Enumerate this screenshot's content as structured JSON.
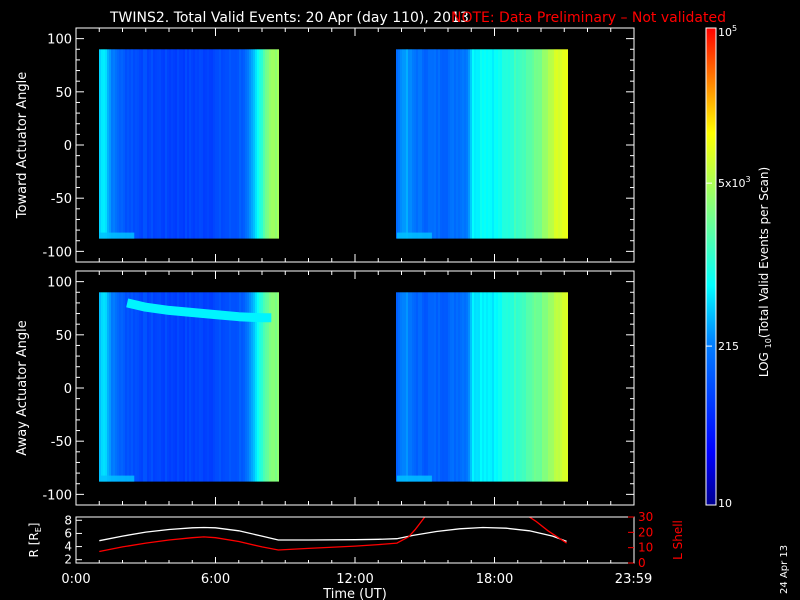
{
  "header": {
    "title": "TWINS2. Total Valid Events: 20 Apr (day 110), 2013",
    "note": "NOTE: Data Preliminary – Not validated"
  },
  "colors": {
    "background": "#000000",
    "foreground": "#ffffff",
    "note": "#ff0000",
    "r_line": "#ffffff",
    "lshell_line": "#ff0000"
  },
  "footer": {
    "date_stamp": "24 Apr 13"
  },
  "chart_data": [
    {
      "id": "toward",
      "type": "heatmap",
      "ylabel": "Toward Actuator Angle",
      "xlim": [
        0,
        24
      ],
      "ylim": [
        -110,
        110
      ],
      "yticks": [
        "100",
        "50",
        "0",
        "-50",
        "-100"
      ],
      "blocks": [
        {
          "time_range": [
            1.0,
            8.7
          ],
          "angle_range": [
            -88,
            90
          ],
          "x_profile": [
            [
              1.0,
              0.42
            ],
            [
              1.2,
              0.47
            ],
            [
              1.35,
              0.38
            ],
            [
              1.6,
              0.32
            ],
            [
              2.0,
              0.27
            ],
            [
              3.0,
              0.24
            ],
            [
              4.0,
              0.23
            ],
            [
              5.0,
              0.23
            ],
            [
              6.0,
              0.24
            ],
            [
              6.8,
              0.26
            ],
            [
              7.3,
              0.3
            ],
            [
              7.6,
              0.38
            ],
            [
              7.8,
              0.47
            ],
            [
              8.0,
              0.55
            ],
            [
              8.1,
              0.6
            ],
            [
              8.3,
              0.65
            ],
            [
              8.7,
              0.65
            ]
          ]
        },
        {
          "time_range": [
            13.8,
            21.1
          ],
          "angle_range": [
            -88,
            90
          ],
          "x_profile": [
            [
              13.8,
              0.32
            ],
            [
              14.1,
              0.38
            ],
            [
              14.4,
              0.33
            ],
            [
              15.0,
              0.3
            ],
            [
              16.0,
              0.3
            ],
            [
              16.8,
              0.34
            ],
            [
              17.0,
              0.45
            ],
            [
              17.5,
              0.48
            ],
            [
              18.0,
              0.46
            ],
            [
              18.5,
              0.5
            ],
            [
              19.0,
              0.55
            ],
            [
              19.6,
              0.58
            ],
            [
              20.2,
              0.65
            ],
            [
              20.6,
              0.72
            ],
            [
              20.9,
              0.74
            ],
            [
              21.1,
              0.74
            ]
          ]
        }
      ]
    },
    {
      "id": "away",
      "type": "heatmap",
      "ylabel": "Away Actuator Angle",
      "xlim": [
        0,
        24
      ],
      "ylim": [
        -110,
        110
      ],
      "yticks": [
        "100",
        "50",
        "0",
        "-50",
        "-100"
      ],
      "blocks": [
        {
          "time_range": [
            1.0,
            8.7
          ],
          "angle_range": [
            -88,
            90
          ],
          "x_profile": [
            [
              1.0,
              0.4
            ],
            [
              1.2,
              0.46
            ],
            [
              1.35,
              0.38
            ],
            [
              1.6,
              0.32
            ],
            [
              2.0,
              0.27
            ],
            [
              3.0,
              0.24
            ],
            [
              4.0,
              0.23
            ],
            [
              5.0,
              0.23
            ],
            [
              6.0,
              0.24
            ],
            [
              6.8,
              0.26
            ],
            [
              7.3,
              0.3
            ],
            [
              7.6,
              0.38
            ],
            [
              7.8,
              0.47
            ],
            [
              8.0,
              0.55
            ],
            [
              8.3,
              0.62
            ],
            [
              8.7,
              0.62
            ]
          ]
        },
        {
          "time_range": [
            13.8,
            21.1
          ],
          "angle_range": [
            -88,
            90
          ],
          "x_profile": [
            [
              13.8,
              0.3
            ],
            [
              14.1,
              0.36
            ],
            [
              14.4,
              0.3
            ],
            [
              15.0,
              0.28
            ],
            [
              16.0,
              0.29
            ],
            [
              16.8,
              0.33
            ],
            [
              17.0,
              0.44
            ],
            [
              17.5,
              0.46
            ],
            [
              18.0,
              0.45
            ],
            [
              18.5,
              0.5
            ],
            [
              19.0,
              0.54
            ],
            [
              19.6,
              0.58
            ],
            [
              20.2,
              0.62
            ],
            [
              20.6,
              0.68
            ],
            [
              20.9,
              0.72
            ],
            [
              21.1,
              0.72
            ]
          ]
        }
      ],
      "features": [
        {
          "label": "high-angle band",
          "points": [
            [
              2.2,
              80
            ],
            [
              3.0,
              76
            ],
            [
              4.0,
              73
            ],
            [
              5.0,
              71
            ],
            [
              6.0,
              69
            ],
            [
              7.0,
              67
            ],
            [
              8.0,
              66
            ],
            [
              8.4,
              66
            ]
          ],
          "level": 0.45
        }
      ]
    },
    {
      "id": "orbit",
      "type": "line",
      "xlabel": "Time (UT)",
      "xticks": [
        "0:00",
        "6:00",
        "12:00",
        "18:00",
        "23:59"
      ],
      "xtick_hours": [
        0,
        6,
        12,
        18,
        23.98
      ],
      "xlim": [
        0,
        24
      ],
      "ylabel_left": "R [RE]",
      "ylabel_right": "L Shell",
      "ylim_left": [
        1.5,
        8.5
      ],
      "ylim_right": [
        0,
        30
      ],
      "yticks_left": [
        "8",
        "6",
        "4",
        "2"
      ],
      "yticks_right": [
        "30",
        "20",
        "10",
        "0"
      ],
      "series": [
        {
          "axis": "left",
          "color": "#ffffff",
          "x": [
            1.0,
            2.0,
            3.0,
            4.0,
            5.0,
            5.5,
            6.0,
            7.0,
            8.0,
            8.7,
            10.0,
            12.0,
            13.0,
            13.8,
            14.5,
            15.5,
            16.5,
            17.5,
            18.5,
            19.5,
            20.5,
            21.1
          ],
          "y": [
            4.9,
            5.6,
            6.2,
            6.6,
            6.85,
            6.9,
            6.85,
            6.4,
            5.6,
            5.0,
            5.0,
            5.05,
            5.1,
            5.2,
            5.7,
            6.3,
            6.7,
            6.9,
            6.8,
            6.4,
            5.6,
            4.8
          ]
        },
        {
          "axis": "right",
          "color": "#ff0000",
          "x": [
            1.0,
            2.0,
            3.0,
            4.0,
            5.0,
            5.5,
            6.0,
            7.0,
            8.0,
            8.7,
            10.0,
            12.0,
            13.0,
            13.8,
            14.3,
            14.6,
            14.9,
            15.1
          ],
          "y": [
            7.5,
            10.5,
            13,
            15,
            16.5,
            17,
            16.5,
            14,
            10.5,
            8.5,
            9.5,
            11,
            12,
            13,
            17,
            22,
            28,
            32
          ]
        },
        {
          "axis": "right",
          "color": "#ff0000",
          "x": [
            19.3,
            19.8,
            20.3,
            20.7,
            21.1
          ],
          "y": [
            32,
            27,
            21,
            17,
            13
          ]
        }
      ]
    },
    {
      "id": "colorbar",
      "type": "heatmap",
      "label": "LOG10(Total Valid Events per Scan)",
      "scale": "log",
      "range": [
        10,
        100000
      ],
      "ticks": [
        {
          "value": 100000,
          "label": "10",
          "sup": "5"
        },
        {
          "value": 5000,
          "label": "5x10",
          "sup": "3"
        },
        {
          "value": 215,
          "label": "215",
          "sup": ""
        },
        {
          "value": 10,
          "label": "10",
          "sup": ""
        }
      ]
    }
  ]
}
